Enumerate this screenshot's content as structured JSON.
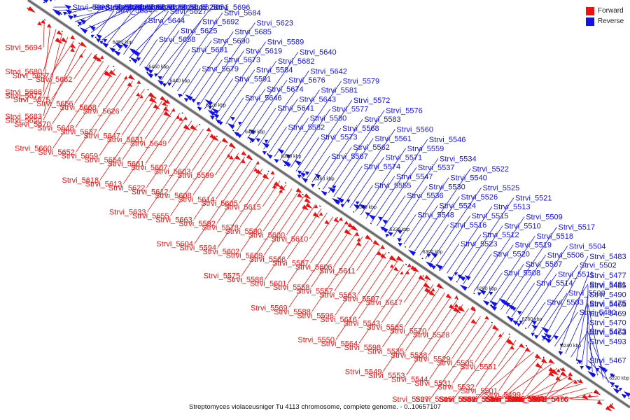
{
  "caption": "Streptomyces violaceusniger Tu 4113 chromosome, complete genome. - 0..10657107",
  "legend": [
    {
      "label": "Forward",
      "color": "#ee1111"
    },
    {
      "label": "Reverse",
      "color": "#1111ee"
    }
  ],
  "ticks": [
    "6480 kbp",
    "6460 kbp",
    "6440 kbp",
    "6420 kbp",
    "6400 kbp",
    "6380 kbp",
    "6360 kbp",
    "6340 kbp",
    "6320 kbp",
    "6300 kbp",
    "6280 kbp",
    "6260 kbp",
    "6240 kbp",
    "6220 kbp"
  ],
  "reverse_labels": [
    "Strvi_5693",
    "Strvi_5671",
    "Strvi_5669",
    "Strvi_5667",
    "Strvi_5665",
    "Strvi_5639",
    "Strvi_5638",
    "Strvi_5635",
    "Strvi_5634",
    "Strvi_5632",
    "Strvi_5630",
    "Strvi_5645",
    "Strvi_5629",
    "Strvi_5644",
    "Strvi_5628",
    "Strvi_5627",
    "Strvi_5658",
    "Strvi_5651",
    "Strvi_5625",
    "Strvi_5696",
    "Strvi_5692",
    "Strvi_5691",
    "Strvi_5684",
    "Strvi_5690",
    "Strvi_5679",
    "Strvi_5685",
    "Strvi_5673",
    "Strvi_5623",
    "Strvi_5619",
    "Strvi_5591",
    "Strvi_5589",
    "Strvi_5584",
    "Strvi_5646",
    "Strvi_5682",
    "Strvi_5674",
    "Strvi_5640",
    "Strvi_5676",
    "Strvi_5641",
    "Strvi_5642",
    "Strvi_5643",
    "Strvi_5582",
    "Strvi_5581",
    "Strvi_5580",
    "Strvi_5579",
    "Strvi_5577",
    "Strvi_5573",
    "Strvi_5572",
    "Strvi_5568",
    "Strvi_5567",
    "Strvi_5583",
    "Strvi_5562",
    "Strvi_5576",
    "Strvi_5561",
    "Strvi_5574",
    "Strvi_5560",
    "Strvi_5571",
    "Strvi_5555",
    "Strvi_5559",
    "Strvi_5547",
    "Strvi_5546",
    "Strvi_5537",
    "Strvi_5536",
    "Strvi_5534",
    "Strvi_5530",
    "Strvi_5548",
    "Strvi_5540",
    "Strvi_5524",
    "Strvi_5522",
    "Strvi_5526",
    "Strvi_5516",
    "Strvi_5525",
    "Strvi_5515",
    "Strvi_5523",
    "Strvi_5513",
    "Strvi_5512",
    "Strvi_5521",
    "Strvi_5510",
    "Strvi_5520",
    "Strvi_5509",
    "Strvi_5519",
    "Strvi_5508",
    "Strvi_5518",
    "Strvi_5507",
    "Strvi_5517",
    "Strvi_5506",
    "Strvi_5514",
    "Strvi_5504",
    "Strvi_5511",
    "Strvi_5503",
    "Strvi_5502",
    "Strvi_5500",
    "Strvi_5483",
    "Strvi_5481",
    "Strvi_5480",
    "Strvi_5477",
    "Strvi_5475",
    "Strvi_5473",
    "Strvi_5490",
    "Strvi_5470",
    "Strvi_5485",
    "Strvi_5469",
    "Strvi_5493",
    "Strvi_5465",
    "Strvi_5463",
    "Strvi_5467"
  ],
  "forward_labels": [
    "Strvi_5694",
    "Strvi_5666",
    "Strvi_5680",
    "Strvi_5683",
    "Strvi_5672",
    "Strvi_5657",
    "Strvi_5650",
    "Strvi_5675",
    "Strvi_5662",
    "Strvi_5670",
    "Strvi_5656",
    "Strvi_5660",
    "Strvi_5648",
    "Strvi_5668",
    "Strvi_5652",
    "Strvi_5637",
    "Strvi_5626",
    "Strvi_5659",
    "Strvi_5647",
    "Strvi_5618",
    "Strvi_5654",
    "Strvi_5631",
    "Strvi_5613",
    "Strvi_5661",
    "Strvi_5649",
    "Strvi_5622",
    "Strvi_5607",
    "Strvi_5633",
    "Strvi_5612",
    "Strvi_5603",
    "Strvi_5655",
    "Strvi_5608",
    "Strvi_5599",
    "Strvi_5663",
    "Strvi_5614",
    "Strvi_5604",
    "Strvi_5592",
    "Strvi_5605",
    "Strvi_5594",
    "Strvi_5578",
    "Strvi_5615",
    "Strvi_5602",
    "Strvi_5590",
    "Strvi_5575",
    "Strvi_5609",
    "Strvi_5600",
    "Strvi_5586",
    "Strvi_5566",
    "Strvi_5610",
    "Strvi_5601",
    "Strvi_5587",
    "Strvi_5569",
    "Strvi_5558",
    "Strvi_5606",
    "Strvi_5588",
    "Strvi_5557",
    "Strvi_5611",
    "Strvi_5596",
    "Strvi_5563",
    "Strvi_5550",
    "Strvi_5616",
    "Strvi_5597",
    "Strvi_5564",
    "Strvi_5543",
    "Strvi_5617",
    "Strvi_5598",
    "Strvi_5565",
    "Strvi_5549",
    "Strvi_5535",
    "Strvi_5570",
    "Strvi_5553",
    "Strvi_5538",
    "Strvi_5528",
    "Strvi_5544",
    "Strvi_5529",
    "Strvi_5527",
    "Strvi_5531",
    "Strvi_5505",
    "Strvi_5545",
    "Strvi_5532",
    "Strvi_5551",
    "Strvi_5533",
    "Strvi_5501",
    "Strvi_5552",
    "Strvi_5539",
    "Strvi_5499",
    "Strvi_5554",
    "Strvi_5541",
    "Strvi_5542",
    "Strvi_5492",
    "Strvi_5498",
    "Strvi_5484",
    "Strvi_5491",
    "Strvi_5476",
    "Strvi_5472",
    "Strvi_5460"
  ]
}
